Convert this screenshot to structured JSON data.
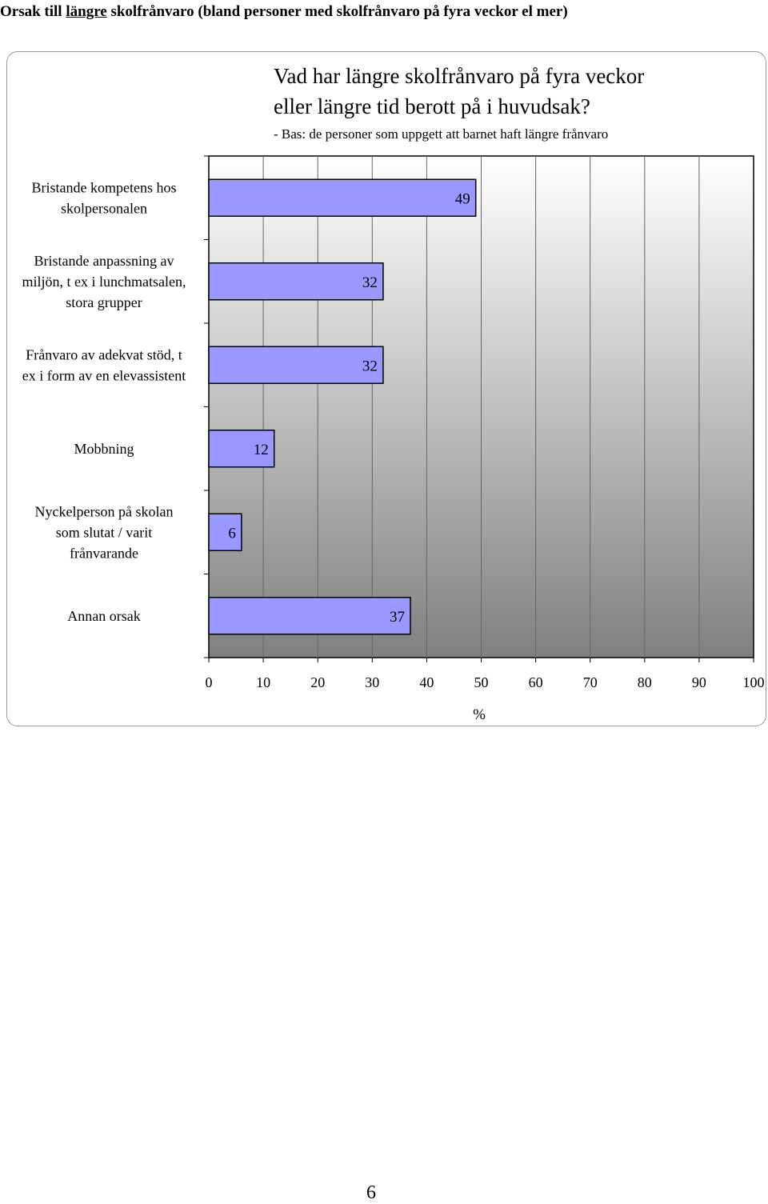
{
  "heading": {
    "part1": "Orsak till ",
    "underlined": "längre",
    "part2": " skolfrånvaro (bland personer med skolfrånvaro på fyra veckor el mer)"
  },
  "chart_data": {
    "type": "bar",
    "orientation": "horizontal",
    "title_lines": [
      "Vad har längre skolfrånvaro på fyra veckor",
      "eller längre tid berott på i huvudsak?"
    ],
    "subtitle": "- Bas: de personer som uppgett att barnet haft längre frånvaro",
    "categories": [
      [
        "Bristande kompetens hos",
        "skolpersonalen"
      ],
      [
        "Bristande anpassning av",
        "miljön, t ex i lunchmatsalen,",
        "stora grupper"
      ],
      [
        "Frånvaro av adekvat stöd, t",
        "ex i form av en elevassistent"
      ],
      [
        "Mobbning"
      ],
      [
        "Nyckelperson på skolan",
        "som slutat / varit",
        "frånvarande"
      ],
      [
        "Annan orsak"
      ]
    ],
    "values": [
      49,
      32,
      32,
      12,
      6,
      37
    ],
    "data_labels": [
      "49",
      "32",
      "32",
      "12",
      "6",
      "37"
    ],
    "xlim": [
      0,
      100
    ],
    "xticks": [
      "0",
      "10",
      "20",
      "30",
      "40",
      "50",
      "60",
      "70",
      "80",
      "90",
      "100"
    ],
    "xlabel": "%",
    "grid": true,
    "legend": "none",
    "colors": {
      "bar": "#9999ff",
      "plot_top": "#ffffff",
      "plot_bottom": "#808080",
      "gridline": "#666666"
    }
  },
  "page_number": "6"
}
